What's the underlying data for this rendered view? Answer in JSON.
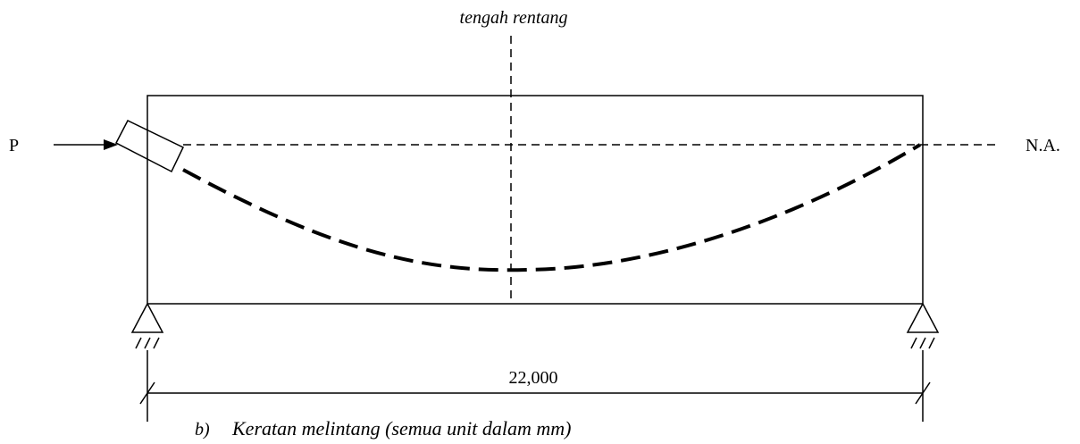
{
  "labels": {
    "midspan": "tengah rentang",
    "load": "P",
    "neutral_axis": "N.A.",
    "span": "22,000",
    "caption_prefix": "b)",
    "caption": "Keratan melintang (semua unit dalam mm)"
  }
}
